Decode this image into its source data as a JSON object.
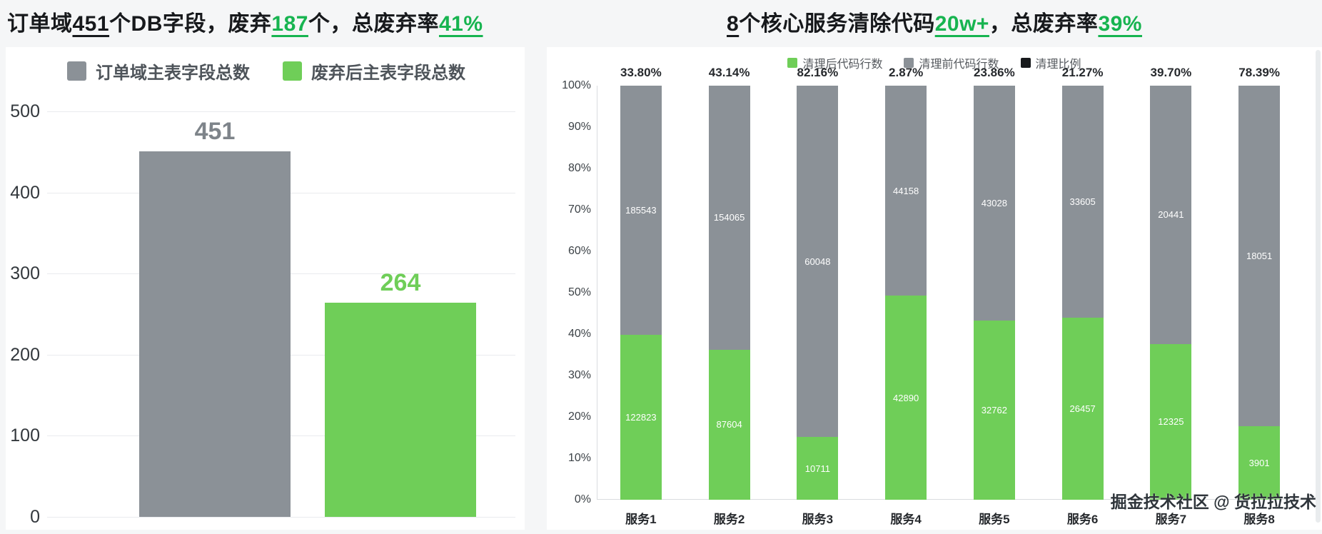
{
  "watermark": "掘金技术社区 @ 货拉拉技术",
  "accent": {
    "title_green": "#17b450",
    "bar_green": "#6fce58",
    "bar_gray": "#8b9197",
    "ratio_black": "#17191c"
  },
  "left": {
    "title_parts": [
      {
        "text": "订单域",
        "style": "plain"
      },
      {
        "text": "451",
        "style": "underline"
      },
      {
        "text": "个DB字段，废弃",
        "style": "plain"
      },
      {
        "text": "187",
        "style": "green-underline"
      },
      {
        "text": "个，总废弃率",
        "style": "plain"
      },
      {
        "text": "41%",
        "style": "green-underline"
      }
    ],
    "legend": [
      {
        "label": "订单域主表字段总数",
        "color": "#8b9197"
      },
      {
        "label": "废弃后主表字段总数",
        "color": "#6fce58"
      }
    ]
  },
  "right": {
    "title_parts": [
      {
        "text": "8",
        "style": "underline"
      },
      {
        "text": "个核心服务清除代码",
        "style": "plain"
      },
      {
        "text": "20w+",
        "style": "green-underline"
      },
      {
        "text": "，总废弃率",
        "style": "plain"
      },
      {
        "text": "39%",
        "style": "green-underline"
      }
    ],
    "legend": [
      {
        "label": "清理后代码行数",
        "color": "#6fce58"
      },
      {
        "label": "清理前代码行数",
        "color": "#8b9197"
      },
      {
        "label": "清理比例",
        "color": "#17191c"
      }
    ]
  },
  "chart_data": [
    {
      "type": "bar",
      "title": "订单域451个DB字段，废弃187个，总废弃率41%",
      "categories": [
        "订单域主表字段总数",
        "废弃后主表字段总数"
      ],
      "values": [
        451,
        264
      ],
      "bar_labels": [
        "451",
        "264"
      ],
      "colors": [
        "#8b9197",
        "#6fce58"
      ],
      "label_colors": [
        "#7e848a",
        "#6fce58"
      ],
      "xlabel": "",
      "ylabel": "",
      "ylim": [
        0,
        500
      ],
      "yticks": [
        0,
        100,
        200,
        300,
        400,
        500
      ],
      "grid": true,
      "legend_position": "top"
    },
    {
      "type": "bar",
      "subtype": "stacked-100-percent",
      "title": "8个核心服务清除代码20w+，总废弃率39%",
      "categories": [
        "服务1",
        "服务2",
        "服务3",
        "服务4",
        "服务5",
        "服务6",
        "服务7",
        "服务8"
      ],
      "series": [
        {
          "name": "清理后代码行数",
          "color": "#6fce58",
          "values": [
            122823,
            87604,
            10711,
            42890,
            32762,
            26457,
            12325,
            3901
          ]
        },
        {
          "name": "清理前代码行数",
          "color": "#8b9197",
          "values": [
            185543,
            154065,
            60048,
            44158,
            43028,
            33605,
            20441,
            18051
          ]
        }
      ],
      "ratio_series": {
        "name": "清理比例",
        "color": "#17191c",
        "labels": [
          "33.80%",
          "43.14%",
          "82.16%",
          "2.87%",
          "23.86%",
          "21.27%",
          "39.70%",
          "78.39%"
        ]
      },
      "xlabel": "",
      "ylabel": "",
      "ylim_percent": [
        0,
        100
      ],
      "yticks_percent": [
        "0%",
        "10%",
        "20%",
        "30%",
        "40%",
        "50%",
        "60%",
        "70%",
        "80%",
        "90%",
        "100%"
      ],
      "grid": false,
      "legend_position": "top"
    }
  ]
}
